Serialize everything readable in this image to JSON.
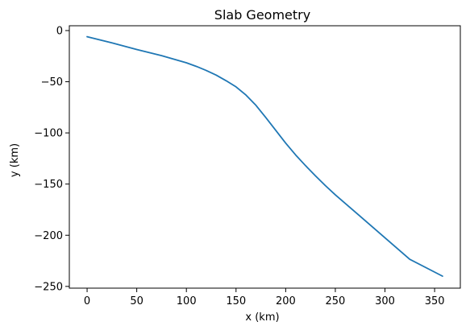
{
  "chart_data": {
    "type": "line",
    "title": "Slab Geometry",
    "xlabel": "x (km)",
    "ylabel": "y (km)",
    "xlim": [
      -17.9,
      375.9
    ],
    "ylim": [
      -251.7,
      4.7
    ],
    "xticks": [
      0,
      50,
      100,
      150,
      200,
      250,
      300,
      350
    ],
    "yticks": [
      0,
      -50,
      -100,
      -150,
      -200,
      -250
    ],
    "xtick_labels": [
      "0",
      "50",
      "100",
      "150",
      "200",
      "250",
      "300",
      "350"
    ],
    "ytick_labels": [
      "0",
      "−50",
      "−100",
      "−150",
      "−200",
      "−250"
    ],
    "grid": false,
    "series": [
      {
        "color": "#1f77b4",
        "x": [
          0,
          25,
          50,
          75,
          100,
          110,
          120,
          130,
          140,
          150,
          160,
          170,
          180,
          190,
          200,
          210,
          220,
          230,
          240,
          250,
          275,
          300,
          325,
          358
        ],
        "y": [
          -6,
          -12,
          -18.5,
          -24.5,
          -31.5,
          -35,
          -39,
          -43.5,
          -49,
          -55,
          -63,
          -73,
          -85,
          -97.5,
          -110,
          -121.5,
          -132,
          -142,
          -151.5,
          -160.5,
          -181.5,
          -202.5,
          -223.5,
          -240
        ]
      }
    ]
  }
}
